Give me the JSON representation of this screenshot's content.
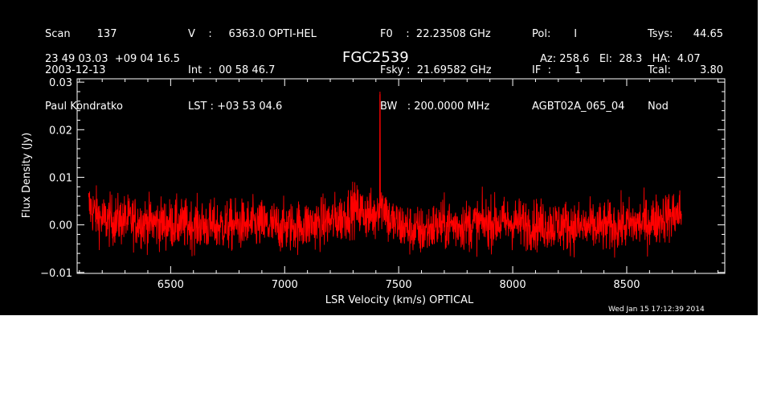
{
  "header": {
    "col1": [
      "Scan        137",
      "2003-12-13",
      "Paul Kondratko"
    ],
    "col2": [
      "V    :     6363.0 OPTI-HEL",
      "Int  :  00 58 46.7",
      "LST : +03 53 04.6"
    ],
    "col3": [
      "F0    :  22.23508 GHz",
      "Fsky :  21.69582 GHz",
      "BW   : 200.0000 MHz"
    ],
    "col4": [
      "Pol:       I",
      "IF  :       1",
      "AGBT02A_065_04"
    ],
    "col5": [
      "Tsys:",
      "Tcal:",
      "Nod"
    ],
    "col6": [
      "44.65",
      "3.80",
      ""
    ],
    "coords": "23 49 03.03  +09 04 16.5",
    "source": "FGC2539",
    "pointing": "Az: 258.6   El:  28.3   HA:  4.07",
    "timestamp": "Wed Jan 15 17:12:39 2014"
  },
  "colors": {
    "background": "#000000",
    "foreground": "#ffffff",
    "trace": "#ff0000"
  },
  "chart_data": {
    "type": "line",
    "title": "FGC2539",
    "xlabel": "LSR Velocity (km/s) OPTICAL",
    "ylabel": "Flux Density (Jy)",
    "xlim": [
      6090,
      8930
    ],
    "ylim": [
      -0.0102,
      0.0307
    ],
    "xticks": [
      6500,
      7000,
      7500,
      8000,
      8500
    ],
    "xtick_labels": [
      "6500",
      "7000",
      "7500",
      "8000",
      "8500"
    ],
    "yticks": [
      -0.01,
      0.0,
      0.01,
      0.02,
      0.03
    ],
    "ytick_labels": [
      "−0.01",
      "0.00",
      "0.01",
      "0.02",
      "0.03"
    ],
    "grid": false,
    "legend": "none",
    "series": [
      {
        "x": [
          6140,
          6200,
          6300,
          6400,
          6500,
          6600,
          6700,
          6800,
          6900,
          7000,
          7100,
          7200,
          7250,
          7300,
          7350,
          7400,
          7418,
          7450,
          7500,
          7550,
          7600,
          7650,
          7700,
          7800,
          7900,
          8000,
          8100,
          8200,
          8300,
          8400,
          8500,
          8600,
          8650,
          8700,
          8740
        ],
        "y": [
          0.004,
          0.001,
          0.001,
          0.0005,
          0.0002,
          0.0,
          -0.0003,
          0.0,
          0.0,
          -0.0005,
          0.0,
          0.0008,
          0.0015,
          0.0035,
          0.0025,
          0.0015,
          0.028,
          0.001,
          0.0,
          -0.001,
          -0.0015,
          -0.0005,
          0.0,
          0.0,
          0.0005,
          0.0005,
          0.0,
          0.0,
          -0.0005,
          -0.0005,
          0.0,
          0.0005,
          0.0015,
          0.002,
          0.0025
        ],
        "noise_rms": 0.0035
      }
    ]
  }
}
